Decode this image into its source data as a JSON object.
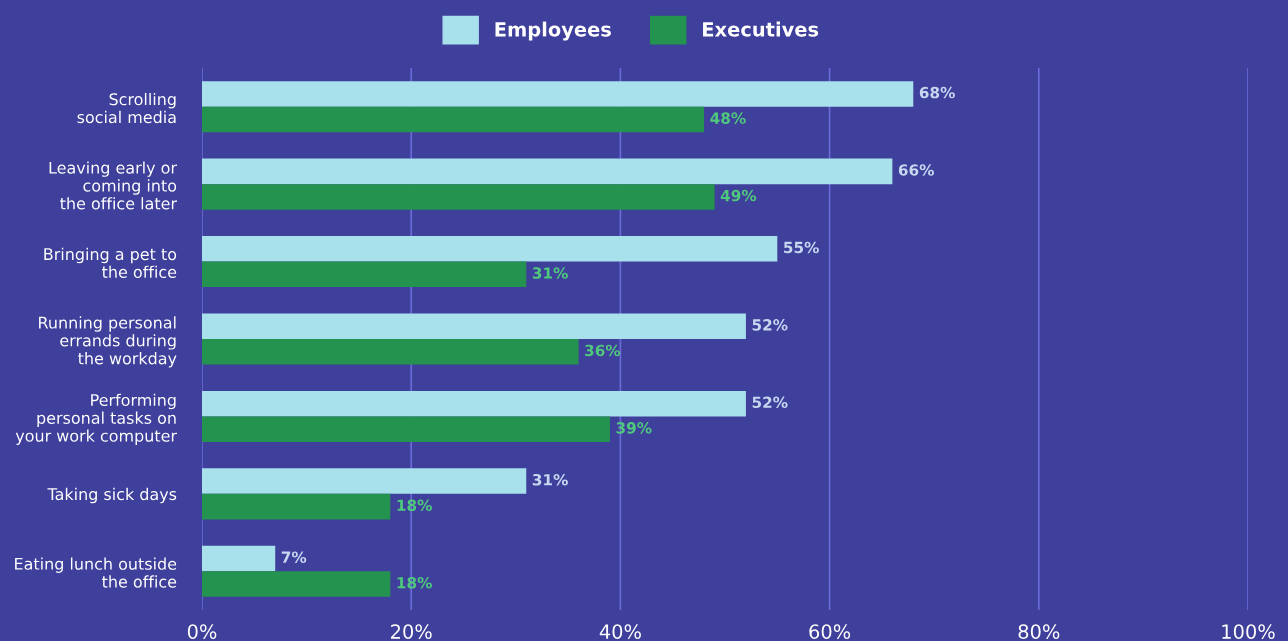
{
  "chart_data": {
    "type": "bar",
    "orientation": "horizontal",
    "categories": [
      "Scrolling\nsocial media",
      "Leaving early or\ncoming into\nthe office later",
      "Bringing a pet to\nthe office",
      "Running personal\nerrands during\nthe workday",
      "Performing\npersonal tasks on\nyour work computer",
      "Taking sick days",
      "Eating lunch outside\nthe office"
    ],
    "series": [
      {
        "name": "Employees",
        "color": "#a8e0ec",
        "values": [
          68,
          66,
          55,
          52,
          52,
          31,
          7
        ],
        "value_labels": [
          "68%",
          "66%",
          "55%",
          "52%",
          "52%",
          "31%",
          "7%"
        ]
      },
      {
        "name": "Executives",
        "color": "#23934f",
        "values": [
          48,
          49,
          31,
          36,
          39,
          18,
          18
        ],
        "value_labels": [
          "48%",
          "49%",
          "31%",
          "36%",
          "39%",
          "18%",
          "18%"
        ]
      }
    ],
    "xlim": [
      0,
      100
    ],
    "xticks": [
      {
        "value": 0,
        "label": "0%"
      },
      {
        "value": 20,
        "label": "20%"
      },
      {
        "value": 40,
        "label": "40%"
      },
      {
        "value": 60,
        "label": "60%"
      },
      {
        "value": 80,
        "label": "80%"
      },
      {
        "value": 100,
        "label": "100%"
      }
    ],
    "grid": "x",
    "legend": "top"
  }
}
